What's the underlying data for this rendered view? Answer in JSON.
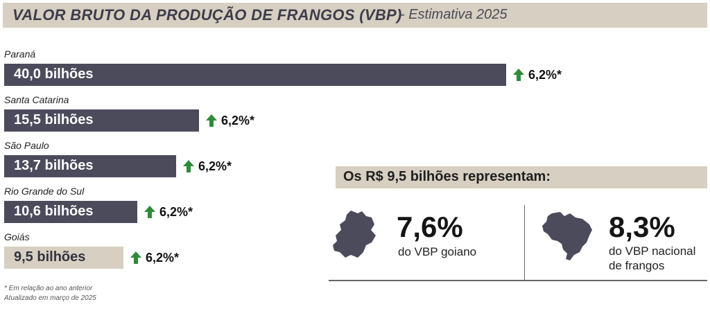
{
  "header": {
    "title": "VALOR BRUTO DA PRODUÇÃO DE FRANGOS (VBP)",
    "subtitle": "- Estimativa 2025"
  },
  "colors": {
    "bar_dark": "#4b4b5c",
    "bar_light": "#d7cfc1",
    "header_bg": "#d7cfc1",
    "arrow_green": "#2e8b3a"
  },
  "chart_data": {
    "type": "bar",
    "orientation": "horizontal",
    "unit": "bilhões",
    "categories": [
      "Paraná",
      "Santa Catarina",
      "São Paulo",
      "Rio Grande do Sul",
      "Goiás"
    ],
    "values": [
      40.0,
      15.5,
      13.7,
      10.6,
      9.5
    ],
    "value_labels": [
      "40,0 bilhões",
      "15,5 bilhões",
      "13,7 bilhões",
      "10,6 bilhões",
      "9,5 bilhões"
    ],
    "changes": [
      "6,2%*",
      "6,2%*",
      "6,2%*",
      "6,2%*",
      "6,2%*"
    ],
    "change_icon": "up-arrow-icon",
    "highlight": "Goiás"
  },
  "footnotes": {
    "line1": "* Em relação ao ano anterior",
    "line2": "Atualizado em março de 2025"
  },
  "representation": {
    "title": "Os R$ 9,5 bilhões representam:",
    "stats": [
      {
        "value": "7,6%",
        "desc": "do VBP goiano",
        "icon": "goias-map-icon"
      },
      {
        "value": "8,3%",
        "desc": "do VBP nacional de frangos",
        "icon": "brazil-map-icon"
      }
    ]
  }
}
